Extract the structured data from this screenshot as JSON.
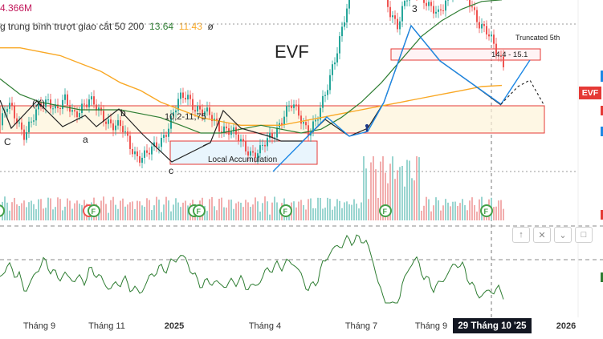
{
  "header": {
    "volume_value": "4.366M",
    "indicator_label": "g trung bình trượt giao cắt",
    "indicator_params": "50 200",
    "ma_fast_value": "13.64",
    "ma_slow_value": "11.43",
    "indicator_extra": "ø"
  },
  "colors": {
    "ma_fast": "#2e7d32",
    "ma_slow": "#f9a825",
    "pattern_line": "#222222",
    "wave_line": "#1e88e5",
    "oscillator": "#2e7d32",
    "candle_up": "#26a69a",
    "candle_down": "#ef5350",
    "box_border": "#e53935"
  },
  "chart_data": {
    "type": "candlestick",
    "title": "EVF",
    "x_tick_labels": [
      "Tháng 9",
      "Tháng 11",
      "2025",
      "Tháng 4",
      "Tháng 7",
      "Tháng 9",
      "2026"
    ],
    "crosshair_date": "29 Tháng 10 '25",
    "last_price_label": "EVF",
    "annotations": {
      "box_range_label": "10,2-11,75",
      "accumulation_label": "Local Accumulation",
      "target_label": "14.4 - 15.1",
      "truncated_label": "Truncated 5th",
      "wave_labels": [
        "C",
        "(X)",
        "a",
        "b",
        "c",
        "3"
      ]
    },
    "price_series": {
      "unit": "thousand VND",
      "samples": [
        10.4,
        10.9,
        10.6,
        10.2,
        10.5,
        10.9,
        11.1,
        10.8,
        11.0,
        10.7,
        10.9,
        11.0,
        10.8,
        10.6,
        10.4,
        10.3,
        9.9,
        9.6,
        9.6,
        9.8,
        10.1,
        10.5,
        11.0,
        11.2,
        10.9,
        10.7,
        10.6,
        10.4,
        10.3,
        10.1,
        9.9,
        9.7,
        9.7,
        10.0,
        10.3,
        10.7,
        10.9,
        10.6,
        10.3,
        10.5,
        11.1,
        12.0,
        12.8,
        13.6,
        14.5,
        15.6,
        14.9,
        14.0,
        13.4,
        13.0,
        13.6,
        14.0,
        13.8,
        13.4,
        13.2,
        13.7,
        14.1,
        13.9,
        13.5,
        13.1,
        12.8,
        12.3,
        12.0
      ],
      "ma_fast": [
        11.6,
        11.2,
        11.0,
        10.9,
        10.8,
        10.8,
        10.8,
        10.7,
        10.6,
        10.4,
        10.2,
        10.2,
        10.3,
        10.4,
        10.3,
        10.2,
        10.3,
        10.6,
        11.0,
        11.5,
        12.1,
        12.7,
        13.1,
        13.4,
        13.6,
        13.64
      ],
      "ma_slow": [
        12.4,
        12.4,
        12.3,
        12.2,
        12.0,
        11.8,
        11.5,
        11.3,
        11.0,
        10.8,
        10.6,
        10.5,
        10.4,
        10.4,
        10.4,
        10.5,
        10.6,
        10.7,
        10.8,
        10.9,
        11.0,
        11.1,
        11.2,
        11.3,
        11.4,
        11.43
      ]
    }
  }
}
